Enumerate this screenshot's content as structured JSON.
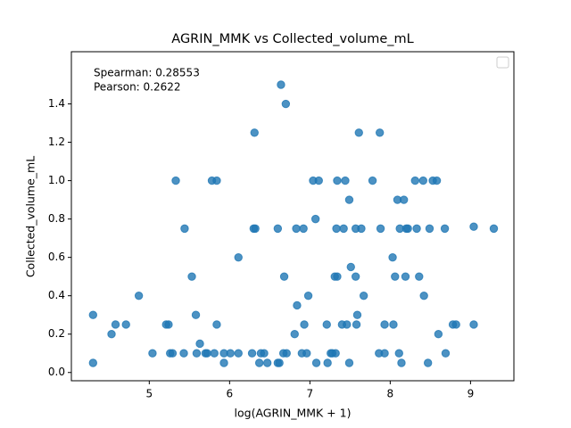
{
  "chart_data": {
    "type": "scatter",
    "title": "AGRIN_MMK vs Collected_volume_mL",
    "x_label": "log(AGRIN_MMK + 1)",
    "y_label": "Collected_volume_mL",
    "annotations": [
      "Spearman: 0.28553",
      "Pearson: 0.2622"
    ],
    "color": "#1f77b4",
    "xlim": [
      4.03,
      9.54
    ],
    "ylim": [
      -0.043,
      1.672
    ],
    "xticks": [
      5,
      6,
      7,
      8,
      9
    ],
    "yticks": [
      {
        "value": 0,
        "label": "0.0"
      },
      0.2,
      0.4,
      0.6,
      0.8,
      {
        "value": 1,
        "label": "1.0"
      },
      1.2,
      1.4
    ],
    "x": [
      4.3,
      4.3,
      4.53,
      4.58,
      4.71,
      4.87,
      5.04,
      5.21,
      5.26,
      5.24,
      5.29,
      5.33,
      5.43,
      5.44,
      5.53,
      5.58,
      5.59,
      5.63,
      5.7,
      5.72,
      5.78,
      5.81,
      5.84,
      5.84,
      5.93,
      5.93,
      6.01,
      6.11,
      6.11,
      6.28,
      6.3,
      6.31,
      6.32,
      6.37,
      6.39,
      6.43,
      6.47,
      6.6,
      6.6,
      6.62,
      6.64,
      6.67,
      6.68,
      6.7,
      6.71,
      6.81,
      6.83,
      6.84,
      6.9,
      6.92,
      6.93,
      6.96,
      6.98,
      7.04,
      7.07,
      7.08,
      7.11,
      7.21,
      7.22,
      7.26,
      7.28,
      7.31,
      7.32,
      7.33,
      7.34,
      7.34,
      7.4,
      7.42,
      7.44,
      7.46,
      7.49,
      7.49,
      7.51,
      7.57,
      7.57,
      7.58,
      7.59,
      7.61,
      7.64,
      7.67,
      7.78,
      7.86,
      7.87,
      7.88,
      7.93,
      7.93,
      8.03,
      8.04,
      8.06,
      8.09,
      8.11,
      8.12,
      8.14,
      8.17,
      8.19,
      8.2,
      8.22,
      8.31,
      8.33,
      8.36,
      8.41,
      8.42,
      8.47,
      8.49,
      8.53,
      8.58,
      8.6,
      8.68,
      8.69,
      8.78,
      8.82,
      9.04,
      9.04,
      9.29
    ],
    "y": [
      0.3,
      0.05,
      0.2,
      0.25,
      0.25,
      0.4,
      0.1,
      0.25,
      0.1,
      0.25,
      0.1,
      1.0,
      0.1,
      0.75,
      0.5,
      0.3,
      0.1,
      0.15,
      0.1,
      0.1,
      1.0,
      0.1,
      1.0,
      0.25,
      0.05,
      0.1,
      0.1,
      0.6,
      0.1,
      0.1,
      0.75,
      1.25,
      0.75,
      0.05,
      0.1,
      0.1,
      0.05,
      0.75,
      0.05,
      0.05,
      1.5,
      0.1,
      0.5,
      1.4,
      0.1,
      0.2,
      0.75,
      0.35,
      0.1,
      0.75,
      0.25,
      0.1,
      0.4,
      1.0,
      0.8,
      0.05,
      1.0,
      0.25,
      0.05,
      0.1,
      0.1,
      0.5,
      0.1,
      0.75,
      1.0,
      0.5,
      0.25,
      0.75,
      1.0,
      0.25,
      0.05,
      0.9,
      0.55,
      0.5,
      0.75,
      0.25,
      0.3,
      1.25,
      0.75,
      0.4,
      1.0,
      0.1,
      1.25,
      0.75,
      0.25,
      0.1,
      0.6,
      0.25,
      0.5,
      0.9,
      0.1,
      0.75,
      0.05,
      0.9,
      0.5,
      0.75,
      0.75,
      1.0,
      0.75,
      0.5,
      1.0,
      0.4,
      0.05,
      0.75,
      1.0,
      1.0,
      0.2,
      0.75,
      0.1,
      0.25,
      0.25,
      0.25,
      0.76,
      0.75
    ]
  }
}
